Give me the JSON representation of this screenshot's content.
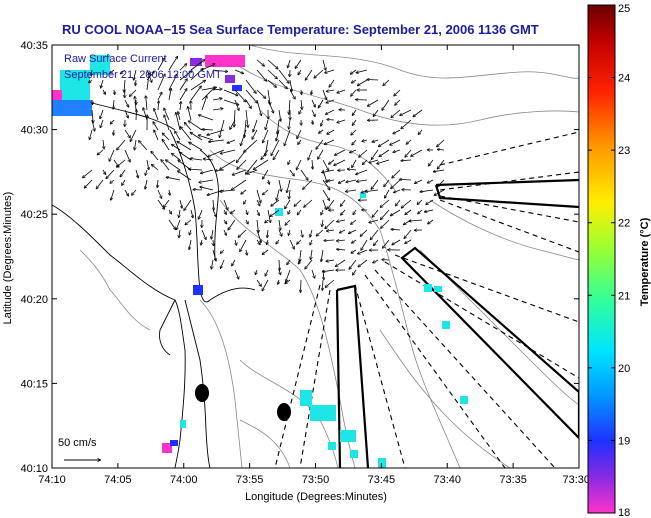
{
  "title": "RU COOL  NOAA−15  Sea Surface Temperature:  September 21, 2006 1136 GMT",
  "overlay": {
    "line1": "Raw Surface Current",
    "line2": "September 21, 2006 12:00 GMT"
  },
  "axes": {
    "xlabel": "Longitude (Degrees:Minutes)",
    "ylabel": "Latitude (Degrees:Minutes)",
    "x_ticks": [
      "74:10",
      "74:05",
      "74:00",
      "73:55",
      "73:50",
      "73:45",
      "73:40",
      "73:35",
      "73:30"
    ],
    "y_ticks": [
      "40:35",
      "40:30",
      "40:25",
      "40:20",
      "40:15",
      "40:10"
    ]
  },
  "scale_bar": {
    "label": "50 cm/s"
  },
  "colorbar": {
    "label": "Temperature (°C)",
    "ticks": [
      "25",
      "24",
      "23",
      "22",
      "21",
      "20",
      "19",
      "18"
    ],
    "range": [
      18,
      25
    ],
    "colors": [
      "#ff33cc",
      "#2030ff",
      "#00e5ff",
      "#66ff66",
      "#ffee00",
      "#ff8800",
      "#ff1000",
      "#6b0000"
    ]
  },
  "colors": {
    "frame": "#000000",
    "title": "#1c1ca0",
    "coast": "#000000",
    "bathymetry": "#888888",
    "sst_patch": "#1ee6e6"
  }
}
